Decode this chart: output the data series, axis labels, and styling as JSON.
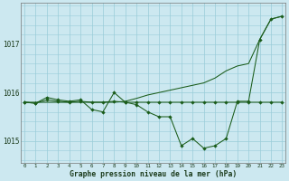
{
  "title": "Graphe pression niveau de la mer (hPa)",
  "background_color": "#cce8f0",
  "grid_color": "#99ccd9",
  "line_color": "#1a5c1a",
  "x_ticks": [
    0,
    1,
    2,
    3,
    4,
    5,
    6,
    7,
    8,
    9,
    10,
    11,
    12,
    13,
    14,
    15,
    16,
    17,
    18,
    19,
    20,
    21,
    22,
    23
  ],
  "y_ticks": [
    1015,
    1016,
    1017
  ],
  "ylim": [
    1014.55,
    1017.85
  ],
  "xlim": [
    -0.3,
    23.3
  ],
  "line_upper": [
    1015.8,
    1015.8,
    1015.8,
    1015.8,
    1015.8,
    1015.8,
    1015.8,
    1015.8,
    1015.8,
    1015.82,
    1015.88,
    1015.95,
    1016.0,
    1016.05,
    1016.1,
    1016.15,
    1016.2,
    1016.3,
    1016.45,
    1016.55,
    1016.6,
    1017.1,
    1017.52,
    1017.58
  ],
  "line_mid": [
    1015.8,
    1015.78,
    1015.9,
    1015.85,
    1015.82,
    1015.85,
    1015.65,
    1015.6,
    1016.0,
    1015.8,
    1015.75,
    1015.6,
    1015.5,
    1015.5,
    1014.9,
    1015.05,
    1014.85,
    1014.9,
    1015.05,
    1015.82,
    1015.82,
    1017.1,
    1017.52,
    1017.58
  ],
  "line_lower_flat": [
    1015.8,
    1015.78,
    1015.85,
    1015.82,
    1015.8,
    1015.82,
    1015.8,
    1015.8,
    1015.82,
    1015.8,
    1015.8,
    1015.8,
    1015.8,
    1015.8,
    1015.8,
    1015.8,
    1015.8,
    1015.8,
    1015.8,
    1015.8,
    1015.8,
    1015.8,
    1015.8,
    1015.8
  ]
}
